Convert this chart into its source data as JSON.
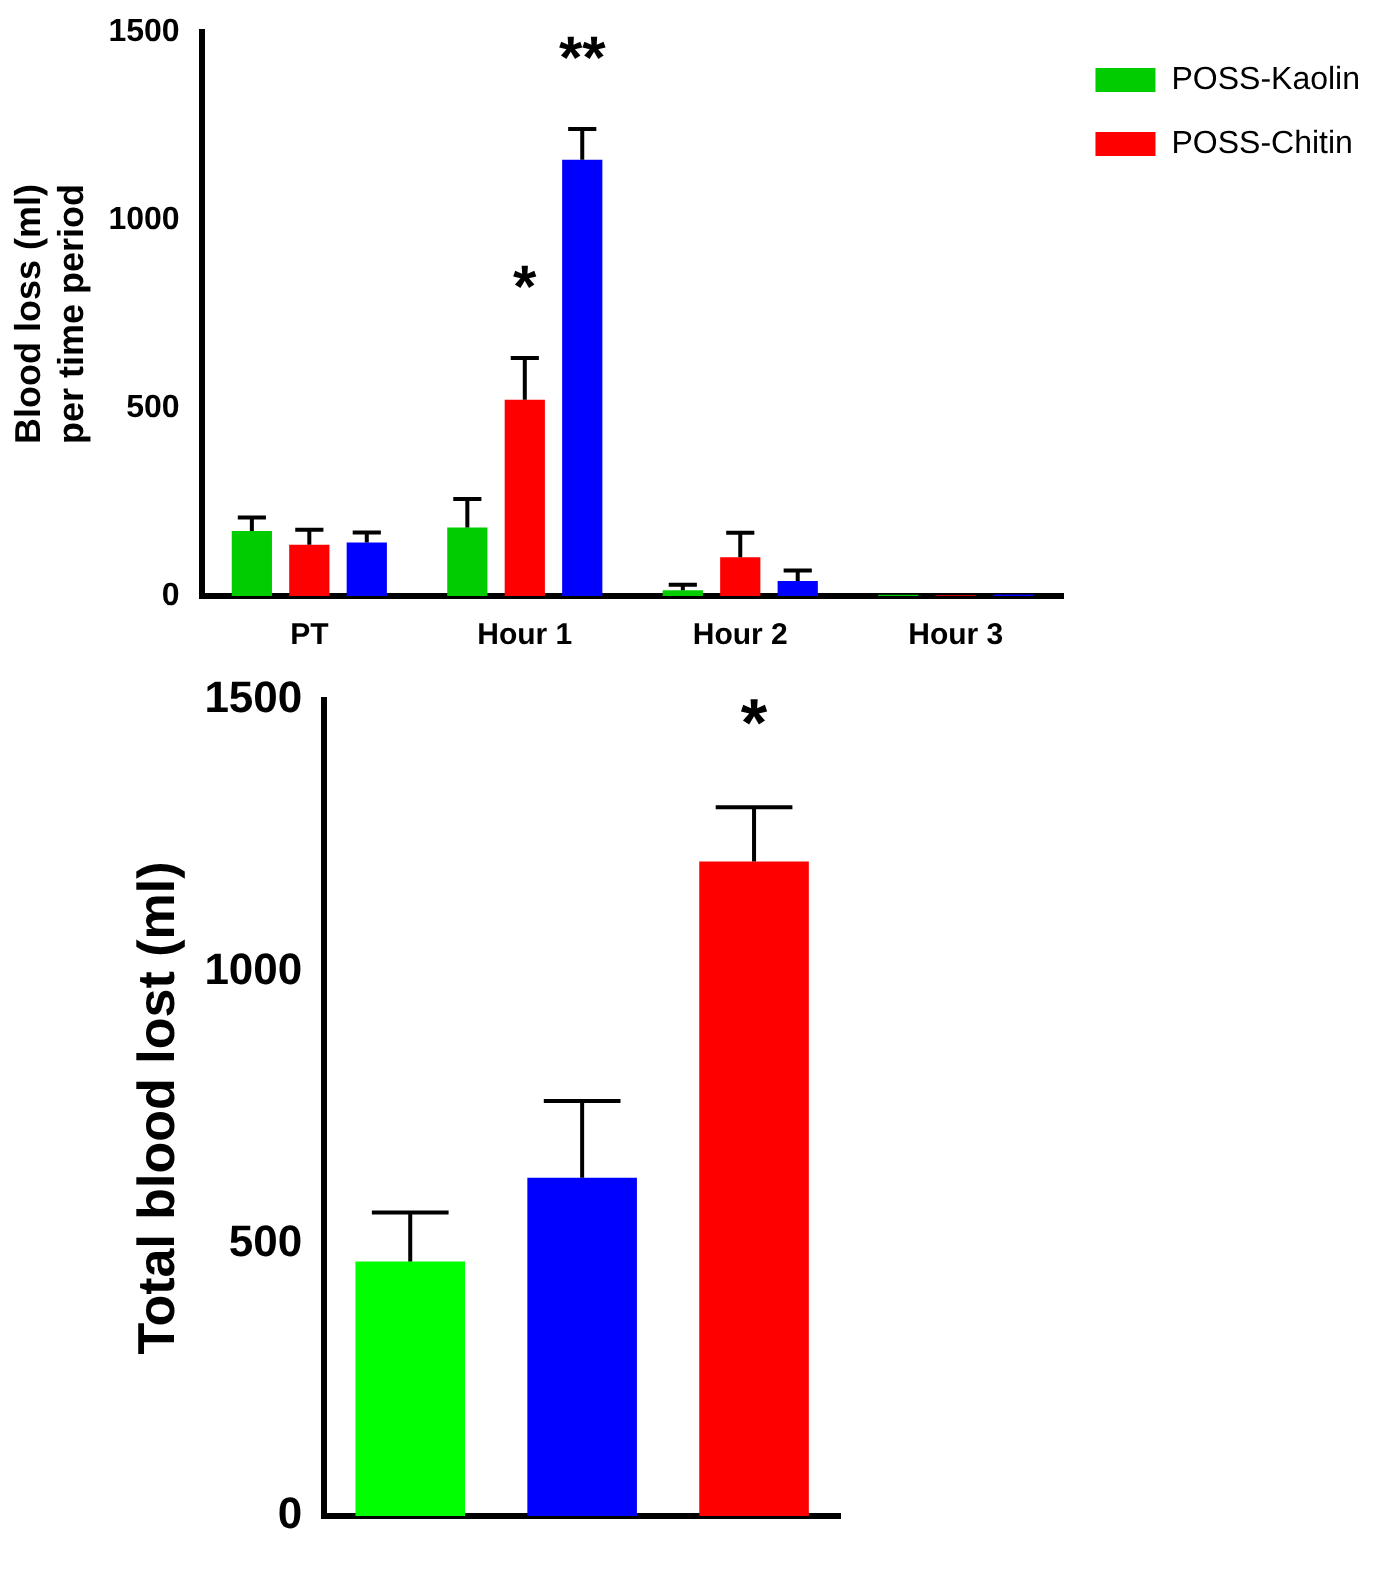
{
  "chart_data": [
    {
      "type": "bar",
      "ylabel": "Blood loss (ml)\nper time period",
      "categories": [
        "PT",
        "Hour 1",
        "Hour 2",
        "Hour 3"
      ],
      "series": [
        {
          "name": "POSS-Kaolin",
          "color": "#00cc00",
          "values": [
            173,
            182,
            15,
            3
          ],
          "errors": [
            [
              173,
              209
            ],
            [
              182,
              258
            ],
            [
              15,
              30
            ],
            null
          ]
        },
        {
          "name": "POSS-Chitin",
          "color": "#ff0000",
          "values": [
            136,
            522,
            103,
            2
          ],
          "errors": [
            [
              136,
              176
            ],
            [
              522,
              633
            ],
            [
              103,
              168
            ],
            null
          ]
        },
        {
          "color": "#0000ff",
          "values": [
            142,
            1160,
            40,
            4
          ],
          "errors": [
            [
              142,
              169
            ],
            [
              1160,
              1242
            ],
            [
              40,
              68
            ],
            null
          ]
        }
      ],
      "ylim": [
        0,
        1500
      ],
      "yticks": [
        0,
        500,
        1000,
        1500
      ],
      "grid": false,
      "legend": "top right",
      "annotations": [
        {
          "text": "*",
          "x": "Hour 1",
          "y": 633
        },
        "**"
      ]
    },
    {
      "type": "bar",
      "ylabel": "Total blood lost (ml)",
      "categories": [
        null,
        null,
        null
      ],
      "values": [
        468,
        622,
        1203
      ],
      "colors": [
        "#00ff00",
        "#0000ff",
        "#ff0000"
      ],
      "errors": [
        [
          468,
          558
        ],
        [
          622,
          763
        ],
        [
          1203,
          1303
        ]
      ],
      "ylim": [
        0,
        1500
      ],
      "yticks": [
        0,
        500,
        1000,
        1500
      ],
      "grid": false,
      "legend": false,
      "annotations": [
        {
          "text": "*",
          "y": 1303
        }
      ]
    }
  ]
}
